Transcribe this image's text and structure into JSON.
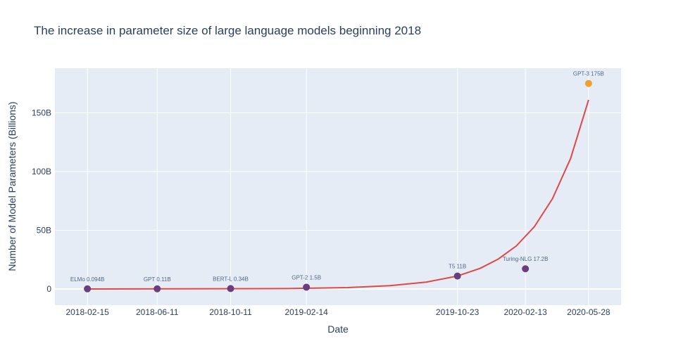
{
  "chart_data": {
    "type": "scatter",
    "title": "The increase in parameter size of large language models beginning 2018",
    "xlabel": "Date",
    "ylabel": "Number of Model Parameters (Billions)",
    "xlim": [
      "2017-12-23",
      "2020-07-21"
    ],
    "ylim": [
      -13.8,
      188
    ],
    "x_tick_labels": [
      "2018-02-15",
      "2018-06-11",
      "2018-10-11",
      "2019-02-14",
      "2019-10-23",
      "2020-02-13",
      "2020-05-28"
    ],
    "y_ticks": [
      0,
      50,
      100,
      150
    ],
    "y_tick_labels": [
      "0",
      "50B",
      "100B",
      "150B"
    ],
    "grid": true,
    "points": [
      {
        "date": "2018-02-15",
        "value": 0.094,
        "label": "ELMo 0.094B",
        "color": "#6a3d7c"
      },
      {
        "date": "2018-06-11",
        "value": 0.11,
        "label": "GPT 0.11B",
        "color": "#6a3d7c"
      },
      {
        "date": "2018-10-11",
        "value": 0.34,
        "label": "BERT-L 0.34B",
        "color": "#6a3d7c"
      },
      {
        "date": "2019-02-14",
        "value": 1.5,
        "label": "GPT-2 1.5B",
        "color": "#6a3d7c"
      },
      {
        "date": "2019-10-23",
        "value": 11,
        "label": "T5 11B",
        "color": "#6a3d7c"
      },
      {
        "date": "2020-02-13",
        "value": 17.2,
        "label": "Turing-NLG 17.2B",
        "color": "#6a3d7c"
      },
      {
        "date": "2020-05-28",
        "value": 175,
        "label": "GPT-3 175B",
        "color": "#f0a030"
      }
    ],
    "trend": {
      "color": "#e04848",
      "x": [
        "2018-02-15",
        "2019-01-14",
        "2019-04-24",
        "2019-07-03",
        "2019-09-01",
        "2019-10-23",
        "2019-11-30",
        "2019-12-30",
        "2020-01-29",
        "2020-02-28",
        "2020-03-29",
        "2020-04-28",
        "2020-05-28"
      ],
      "y": [
        0.0,
        0.34,
        1.2,
        2.8,
        5.8,
        11.0,
        17.6,
        25.5,
        36.7,
        53.1,
        76.9,
        111,
        161
      ]
    },
    "colors": {
      "plot_bg": "#e5ecf6",
      "grid": "#ffffff",
      "text": "#2a3f5f"
    }
  }
}
